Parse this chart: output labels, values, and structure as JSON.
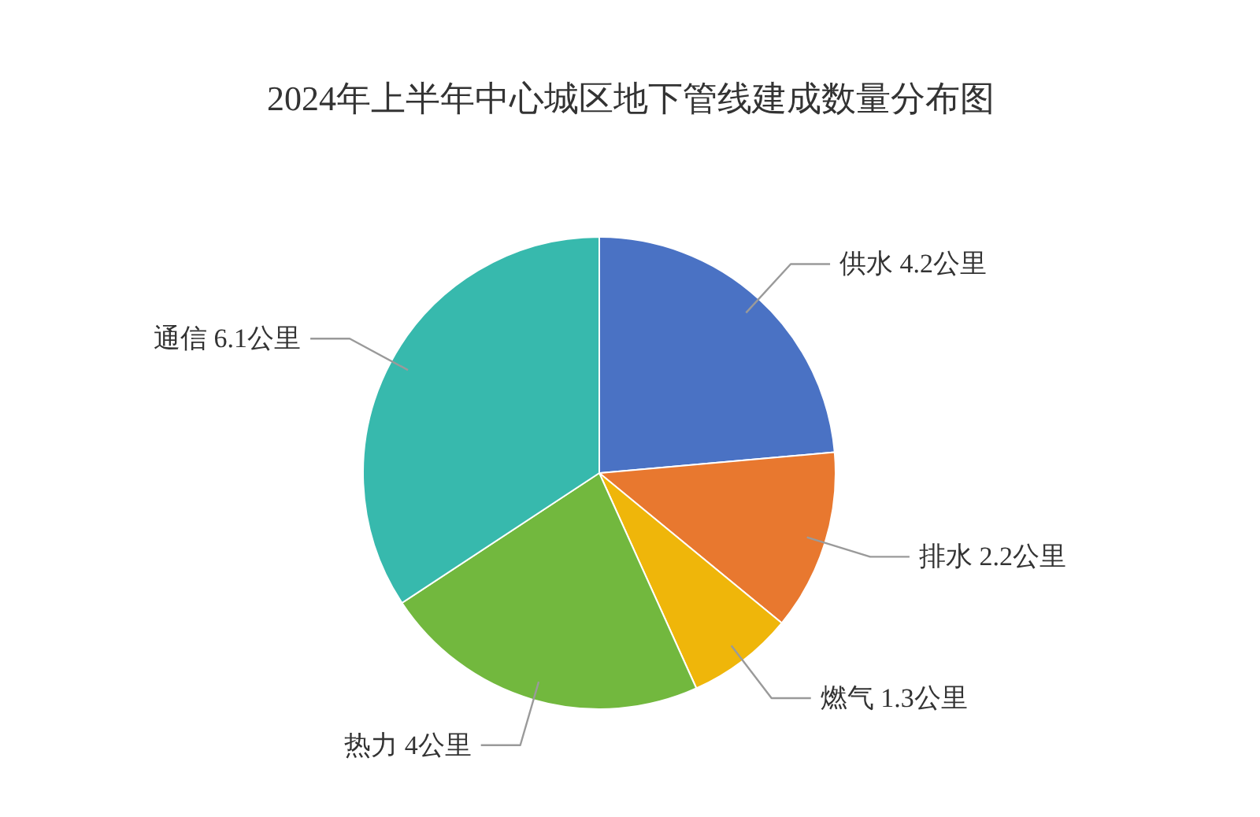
{
  "chart_data": {
    "type": "pie",
    "title": "2024年上半年中心城区地下管线建成数量分布图",
    "categories": [
      "供水",
      "排水",
      "燃气",
      "热力",
      "通信"
    ],
    "values": [
      4.2,
      2.2,
      1.3,
      4,
      6.1
    ],
    "value_labels": [
      "4.2公里",
      "2.2公里",
      "1.3公里",
      "4公里",
      "6.1公里"
    ],
    "colors": [
      "#4a72c4",
      "#e8782f",
      "#efb60a",
      "#72b83e",
      "#37b9ad"
    ]
  }
}
